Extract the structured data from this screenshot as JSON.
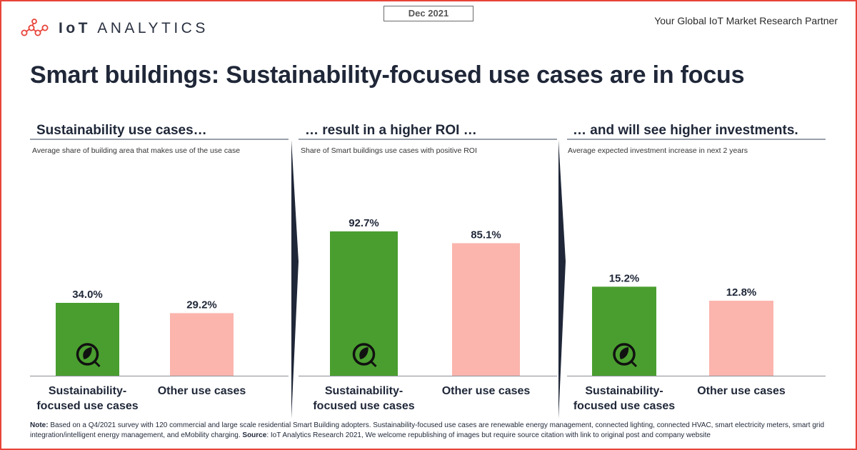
{
  "brand": {
    "logo_bold": "IoT",
    "logo_light": "ANALYTICS",
    "tagline": "Your Global IoT Market Research Partner",
    "accent": "#e8443a"
  },
  "date_label": "Dec 2021",
  "title": "Smart buildings: Sustainability-focused use cases are in focus",
  "panels": [
    {
      "heading": "Sustainability use cases…",
      "subtitle": "Average share of building area that makes use of the use case"
    },
    {
      "heading": "… result in a higher ROI …",
      "subtitle": "Share of Smart buildings use cases with positive ROI"
    },
    {
      "heading": "… and will see higher investments.",
      "subtitle": "Average expected investment increase in next 2 years"
    }
  ],
  "chart_data": [
    {
      "type": "bar",
      "title": "Sustainability use cases…",
      "subtitle": "Average share of building area that makes use of the use case",
      "categories": [
        "Sustainability-focused use cases",
        "Other use cases"
      ],
      "values": [
        34.0,
        29.2
      ],
      "value_labels": [
        "34.0%",
        "29.2%"
      ],
      "colors": [
        "#4a9e2f",
        "#fbb5ad"
      ],
      "ylim": [
        0,
        110
      ]
    },
    {
      "type": "bar",
      "title": "… result in a higher ROI …",
      "subtitle": "Share of Smart buildings use cases with positive ROI",
      "categories": [
        "Sustainability-focused use cases",
        "Other use cases"
      ],
      "values": [
        92.7,
        85.1
      ],
      "value_labels": [
        "92.7%",
        "85.1%"
      ],
      "colors": [
        "#4a9e2f",
        "#fbb5ad"
      ],
      "ylim": [
        0,
        110
      ]
    },
    {
      "type": "bar",
      "title": "… and will see higher investments.",
      "subtitle": "Average expected investment increase in next 2 years",
      "categories": [
        "Sustainability-focused use cases",
        "Other use cases"
      ],
      "values": [
        15.2,
        12.8
      ],
      "value_labels": [
        "15.2%",
        "12.8%"
      ],
      "colors": [
        "#4a9e2f",
        "#fbb5ad"
      ],
      "ylim": [
        0,
        30
      ]
    }
  ],
  "category_lines": [
    [
      "Sustainability-",
      "focused use cases"
    ],
    [
      "Other use cases"
    ]
  ],
  "note": {
    "label": "Note:",
    "text": " Based on a Q4/2021 survey with 120 commercial and large scale residential Smart Building adopters. Sustainability-focused use cases are renewable energy management, connected lighting, connected HVAC, smart electricity meters, smart grid integration/intelligent energy management, and eMobility charging. ",
    "source_label": "Source",
    "source_text": ": IoT Analytics Research 2021, We welcome republishing of images but require source citation with link to original post and company website"
  }
}
